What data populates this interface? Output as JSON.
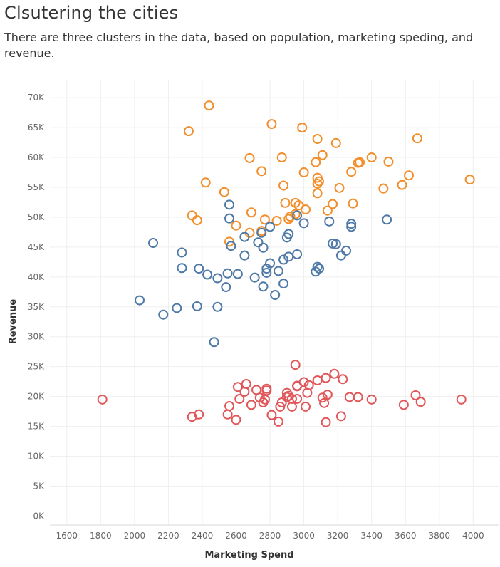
{
  "header": {
    "title": "Clsutering the cities",
    "subtitle": "There are three clusters in the data, based on population, marketing speding, and revenue."
  },
  "chart_data": {
    "type": "scatter",
    "title": "Clsutering the cities",
    "subtitle": "There are three clusters in the data, based on population, marketing speding, and revenue.",
    "xlabel": "Marketing Spend",
    "ylabel": "Revenue",
    "xlim": [
      1500,
      4150
    ],
    "ylim": [
      -1500,
      73000
    ],
    "x_ticks": [
      1600,
      1800,
      2000,
      2200,
      2400,
      2600,
      2800,
      3000,
      3200,
      3400,
      3600,
      3800,
      4000
    ],
    "y_ticks": [
      {
        "value": 0,
        "label": "0K"
      },
      {
        "value": 5000,
        "label": "5K"
      },
      {
        "value": 10000,
        "label": "10K"
      },
      {
        "value": 15000,
        "label": "15K"
      },
      {
        "value": 20000,
        "label": "20K"
      },
      {
        "value": 25000,
        "label": "25K"
      },
      {
        "value": 30000,
        "label": "30K"
      },
      {
        "value": 35000,
        "label": "35K"
      },
      {
        "value": 40000,
        "label": "40K"
      },
      {
        "value": 45000,
        "label": "45K"
      },
      {
        "value": 50000,
        "label": "50K"
      },
      {
        "value": 55000,
        "label": "55K"
      },
      {
        "value": 60000,
        "label": "60K"
      },
      {
        "value": 65000,
        "label": "65K"
      },
      {
        "value": 70000,
        "label": "70K"
      }
    ],
    "grid": true,
    "marker": "hollow-circle",
    "series": [
      {
        "color": "#f28e2b",
        "points": [
          [
            2440,
            68700
          ],
          [
            2320,
            64400
          ],
          [
            2810,
            65600
          ],
          [
            2990,
            65000
          ],
          [
            3080,
            63100
          ],
          [
            3190,
            62400
          ],
          [
            3670,
            63200
          ],
          [
            2680,
            59900
          ],
          [
            2870,
            60000
          ],
          [
            3070,
            59200
          ],
          [
            3110,
            60400
          ],
          [
            3330,
            59200
          ],
          [
            3400,
            60000
          ],
          [
            3500,
            59300
          ],
          [
            3320,
            59100
          ],
          [
            2750,
            57700
          ],
          [
            3000,
            57500
          ],
          [
            3280,
            57600
          ],
          [
            3620,
            57000
          ],
          [
            3980,
            56300
          ],
          [
            3080,
            56600
          ],
          [
            3090,
            56000
          ],
          [
            3080,
            55600
          ],
          [
            2420,
            55800
          ],
          [
            2880,
            55300
          ],
          [
            3210,
            54900
          ],
          [
            3470,
            54800
          ],
          [
            3580,
            55400
          ],
          [
            2530,
            54200
          ],
          [
            3080,
            54000
          ],
          [
            2890,
            52400
          ],
          [
            2950,
            52400
          ],
          [
            2970,
            52000
          ],
          [
            3170,
            52200
          ],
          [
            3290,
            52300
          ],
          [
            3010,
            51300
          ],
          [
            3140,
            51100
          ],
          [
            2340,
            50300
          ],
          [
            2690,
            50800
          ],
          [
            2920,
            50100
          ],
          [
            2950,
            50500
          ],
          [
            2370,
            49500
          ],
          [
            2770,
            49600
          ],
          [
            2840,
            49400
          ],
          [
            2910,
            49700
          ],
          [
            2600,
            48600
          ],
          [
            2750,
            47700
          ],
          [
            2680,
            47400
          ],
          [
            2560,
            45900
          ]
        ]
      },
      {
        "color": "#4e79a7",
        "points": [
          [
            2560,
            52100
          ],
          [
            2560,
            49800
          ],
          [
            2960,
            50300
          ],
          [
            3150,
            49300
          ],
          [
            3000,
            49000
          ],
          [
            3490,
            49600
          ],
          [
            3280,
            48900
          ],
          [
            3280,
            48400
          ],
          [
            2800,
            48400
          ],
          [
            2750,
            47400
          ],
          [
            2910,
            47200
          ],
          [
            2900,
            46600
          ],
          [
            2650,
            46700
          ],
          [
            2110,
            45700
          ],
          [
            2730,
            45800
          ],
          [
            2570,
            45200
          ],
          [
            2760,
            44900
          ],
          [
            3170,
            45600
          ],
          [
            3190,
            45500
          ],
          [
            3250,
            44400
          ],
          [
            3220,
            43600
          ],
          [
            2280,
            44100
          ],
          [
            2650,
            43600
          ],
          [
            2910,
            43400
          ],
          [
            2960,
            43800
          ],
          [
            2880,
            42900
          ],
          [
            2800,
            42300
          ],
          [
            2780,
            41400
          ],
          [
            2280,
            41500
          ],
          [
            2380,
            41400
          ],
          [
            3080,
            41700
          ],
          [
            3090,
            41400
          ],
          [
            3070,
            40900
          ],
          [
            2780,
            40700
          ],
          [
            2850,
            41000
          ],
          [
            2430,
            40400
          ],
          [
            2550,
            40600
          ],
          [
            2610,
            40500
          ],
          [
            2490,
            39800
          ],
          [
            2710,
            39900
          ],
          [
            2880,
            38900
          ],
          [
            2760,
            38400
          ],
          [
            2540,
            38300
          ],
          [
            2830,
            37000
          ],
          [
            2030,
            36100
          ],
          [
            2250,
            34800
          ],
          [
            2370,
            35100
          ],
          [
            2490,
            35000
          ],
          [
            2170,
            33700
          ],
          [
            2470,
            29100
          ]
        ]
      },
      {
        "color": "#e15759",
        "points": [
          [
            2950,
            25300
          ],
          [
            3180,
            23800
          ],
          [
            3080,
            22700
          ],
          [
            3130,
            23100
          ],
          [
            3230,
            22900
          ],
          [
            2610,
            21600
          ],
          [
            2660,
            22100
          ],
          [
            2780,
            21300
          ],
          [
            2720,
            21100
          ],
          [
            2780,
            21000
          ],
          [
            2960,
            21800
          ],
          [
            3000,
            22400
          ],
          [
            3030,
            21900
          ],
          [
            2960,
            21700
          ],
          [
            2650,
            20800
          ],
          [
            2900,
            20600
          ],
          [
            2910,
            20100
          ],
          [
            3020,
            20600
          ],
          [
            3140,
            20300
          ],
          [
            3270,
            19900
          ],
          [
            3320,
            19900
          ],
          [
            3660,
            20200
          ],
          [
            3110,
            19800
          ],
          [
            2900,
            19900
          ],
          [
            2620,
            19600
          ],
          [
            2740,
            19800
          ],
          [
            2770,
            19500
          ],
          [
            2930,
            19600
          ],
          [
            2960,
            19600
          ],
          [
            1810,
            19500
          ],
          [
            3400,
            19500
          ],
          [
            3930,
            19500
          ],
          [
            3690,
            19100
          ],
          [
            2760,
            19000
          ],
          [
            2870,
            19000
          ],
          [
            3120,
            18900
          ],
          [
            2560,
            18400
          ],
          [
            2690,
            18600
          ],
          [
            2860,
            18300
          ],
          [
            2930,
            18300
          ],
          [
            3010,
            18300
          ],
          [
            3590,
            18600
          ],
          [
            2380,
            17000
          ],
          [
            2550,
            17000
          ],
          [
            2810,
            16900
          ],
          [
            3220,
            16700
          ],
          [
            2340,
            16600
          ],
          [
            2600,
            16100
          ],
          [
            2850,
            15800
          ],
          [
            3130,
            15700
          ]
        ]
      }
    ]
  }
}
